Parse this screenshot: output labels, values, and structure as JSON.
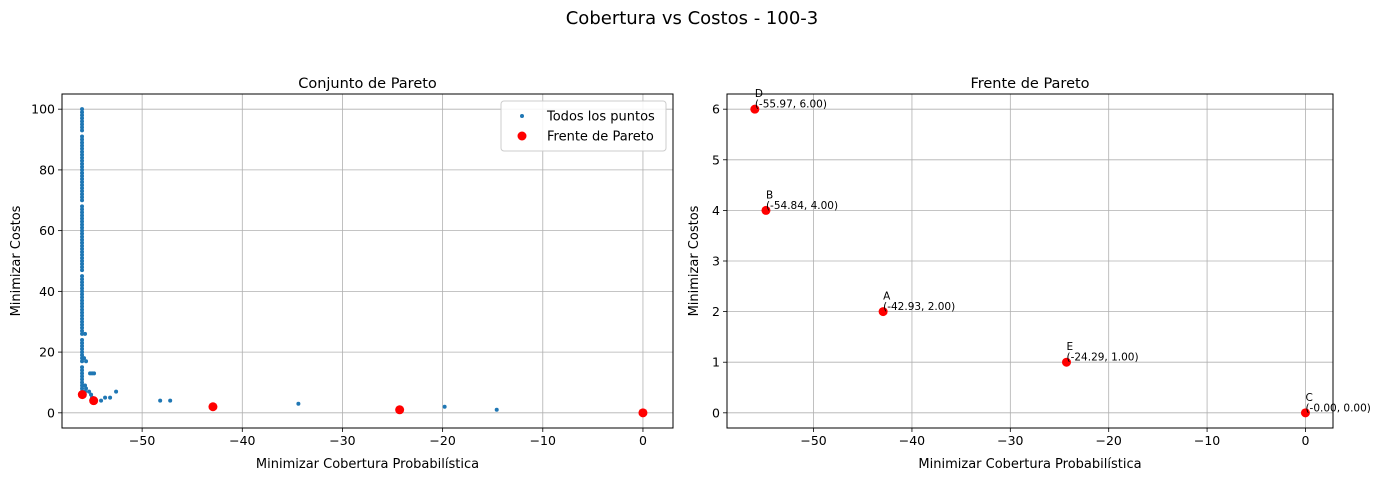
{
  "figure": {
    "suptitle": "Cobertura vs Costos - 100-3"
  },
  "chart_data": [
    {
      "type": "scatter",
      "title": "Conjunto de Pareto",
      "xlabel": "Minimizar Cobertura Probabilística",
      "ylabel": "Minimizar Costos",
      "xlim": [
        -58.0,
        3.0
      ],
      "ylim": [
        -5.0,
        105.0
      ],
      "xticks": [
        -50,
        -40,
        -30,
        -20,
        -10,
        0
      ],
      "xtick_labels": [
        "−50",
        "−40",
        "−30",
        "−20",
        "−10",
        "0"
      ],
      "yticks": [
        0,
        20,
        40,
        60,
        80,
        100
      ],
      "ytick_labels": [
        "0",
        "20",
        "40",
        "60",
        "80",
        "100"
      ],
      "grid": true,
      "legend": "top-right",
      "series": [
        {
          "name": "Todos los puntos",
          "color": "#1f77b4",
          "marker": "small-dot",
          "points": [
            [
              -56.0,
              100
            ],
            [
              -56.0,
              99
            ],
            [
              -56.0,
              98
            ],
            [
              -56.0,
              97
            ],
            [
              -56.0,
              96
            ],
            [
              -56.0,
              95
            ],
            [
              -56.0,
              94
            ],
            [
              -56.0,
              93
            ],
            [
              -56.0,
              91
            ],
            [
              -56.0,
              90
            ],
            [
              -56.0,
              89
            ],
            [
              -56.0,
              88
            ],
            [
              -56.0,
              87
            ],
            [
              -56.0,
              86
            ],
            [
              -56.0,
              85
            ],
            [
              -56.0,
              84
            ],
            [
              -56.0,
              83
            ],
            [
              -56.0,
              82
            ],
            [
              -56.0,
              81
            ],
            [
              -56.0,
              80
            ],
            [
              -56.0,
              79
            ],
            [
              -56.0,
              78
            ],
            [
              -56.0,
              77
            ],
            [
              -56.0,
              76
            ],
            [
              -56.0,
              75
            ],
            [
              -56.0,
              74
            ],
            [
              -56.0,
              73
            ],
            [
              -56.0,
              72
            ],
            [
              -56.0,
              71
            ],
            [
              -56.0,
              70
            ],
            [
              -56.0,
              68
            ],
            [
              -56.0,
              67
            ],
            [
              -56.0,
              66
            ],
            [
              -56.0,
              65
            ],
            [
              -56.0,
              64
            ],
            [
              -56.0,
              63
            ],
            [
              -56.0,
              62
            ],
            [
              -56.0,
              61
            ],
            [
              -56.0,
              60
            ],
            [
              -56.0,
              59
            ],
            [
              -56.0,
              58
            ],
            [
              -56.0,
              57
            ],
            [
              -56.0,
              56
            ],
            [
              -56.0,
              55
            ],
            [
              -56.0,
              54
            ],
            [
              -56.0,
              53
            ],
            [
              -56.0,
              52
            ],
            [
              -56.0,
              51
            ],
            [
              -56.0,
              50
            ],
            [
              -56.0,
              49
            ],
            [
              -56.0,
              48
            ],
            [
              -56.0,
              47
            ],
            [
              -56.0,
              45
            ],
            [
              -56.0,
              44
            ],
            [
              -56.0,
              43
            ],
            [
              -56.0,
              42
            ],
            [
              -56.0,
              41
            ],
            [
              -56.0,
              40
            ],
            [
              -56.0,
              39
            ],
            [
              -56.0,
              38
            ],
            [
              -56.0,
              37
            ],
            [
              -56.0,
              36
            ],
            [
              -56.0,
              35
            ],
            [
              -56.0,
              34
            ],
            [
              -56.0,
              33
            ],
            [
              -56.0,
              32
            ],
            [
              -56.0,
              31
            ],
            [
              -56.0,
              30
            ],
            [
              -56.0,
              29
            ],
            [
              -56.0,
              28
            ],
            [
              -56.0,
              27
            ],
            [
              -56.0,
              26
            ],
            [
              -56.0,
              24
            ],
            [
              -56.0,
              23
            ],
            [
              -56.0,
              22
            ],
            [
              -56.0,
              21
            ],
            [
              -56.0,
              20
            ],
            [
              -56.0,
              19
            ],
            [
              -56.0,
              18
            ],
            [
              -56.0,
              17
            ],
            [
              -56.0,
              15
            ],
            [
              -56.0,
              14
            ],
            [
              -56.0,
              13
            ],
            [
              -56.0,
              12
            ],
            [
              -56.0,
              11
            ],
            [
              -56.0,
              10
            ],
            [
              -56.0,
              9
            ],
            [
              -56.0,
              8
            ],
            [
              -56.0,
              7
            ],
            [
              -55.7,
              26
            ],
            [
              -55.8,
              18
            ],
            [
              -55.6,
              17
            ],
            [
              -55.7,
              9
            ],
            [
              -55.6,
              8
            ],
            [
              -55.7,
              7
            ],
            [
              -55.2,
              13
            ],
            [
              -55.0,
              13
            ],
            [
              -54.8,
              13
            ],
            [
              -55.3,
              7
            ],
            [
              -55.1,
              6
            ],
            [
              -55.0,
              5
            ],
            [
              -54.7,
              4
            ],
            [
              -54.1,
              4
            ],
            [
              -53.7,
              5
            ],
            [
              -53.2,
              5
            ],
            [
              -52.6,
              7
            ],
            [
              -48.2,
              4
            ],
            [
              -47.2,
              4
            ],
            [
              -34.4,
              3
            ],
            [
              -19.8,
              2
            ],
            [
              -14.6,
              1
            ]
          ]
        },
        {
          "name": "Frente de Pareto",
          "color": "#ff0000",
          "marker": "dot",
          "points": [
            [
              -55.97,
              6
            ],
            [
              -54.84,
              4
            ],
            [
              -42.93,
              2
            ],
            [
              -24.29,
              1
            ],
            [
              -0.0,
              0
            ]
          ]
        }
      ]
    },
    {
      "type": "scatter",
      "title": "Frente de Pareto",
      "xlabel": "Minimizar Cobertura Probabilística",
      "ylabel": "Minimizar Costos",
      "xlim": [
        -58.8,
        2.8
      ],
      "ylim": [
        -0.3,
        6.3
      ],
      "xticks": [
        -50,
        -40,
        -30,
        -20,
        -10,
        0
      ],
      "xtick_labels": [
        "−50",
        "−40",
        "−30",
        "−20",
        "−10",
        "0"
      ],
      "yticks": [
        0,
        1,
        2,
        3,
        4,
        5,
        6
      ],
      "ytick_labels": [
        "0",
        "1",
        "2",
        "3",
        "4",
        "5",
        "6"
      ],
      "grid": true,
      "series": [
        {
          "color": "#ff0000",
          "marker": "dot",
          "points": [
            {
              "x": -42.93,
              "y": 2,
              "letter": "A",
              "coord": "(-42.93, 2.00)"
            },
            {
              "x": -54.84,
              "y": 4,
              "letter": "B",
              "coord": "(-54.84, 4.00)"
            },
            {
              "x": -0.0,
              "y": 0,
              "letter": "C",
              "coord": "(-0.00, 0.00)"
            },
            {
              "x": -55.97,
              "y": 6,
              "letter": "D",
              "coord": "(-55.97, 6.00)"
            },
            {
              "x": -24.29,
              "y": 1,
              "letter": "E",
              "coord": "(-24.29, 1.00)"
            }
          ]
        }
      ]
    }
  ]
}
